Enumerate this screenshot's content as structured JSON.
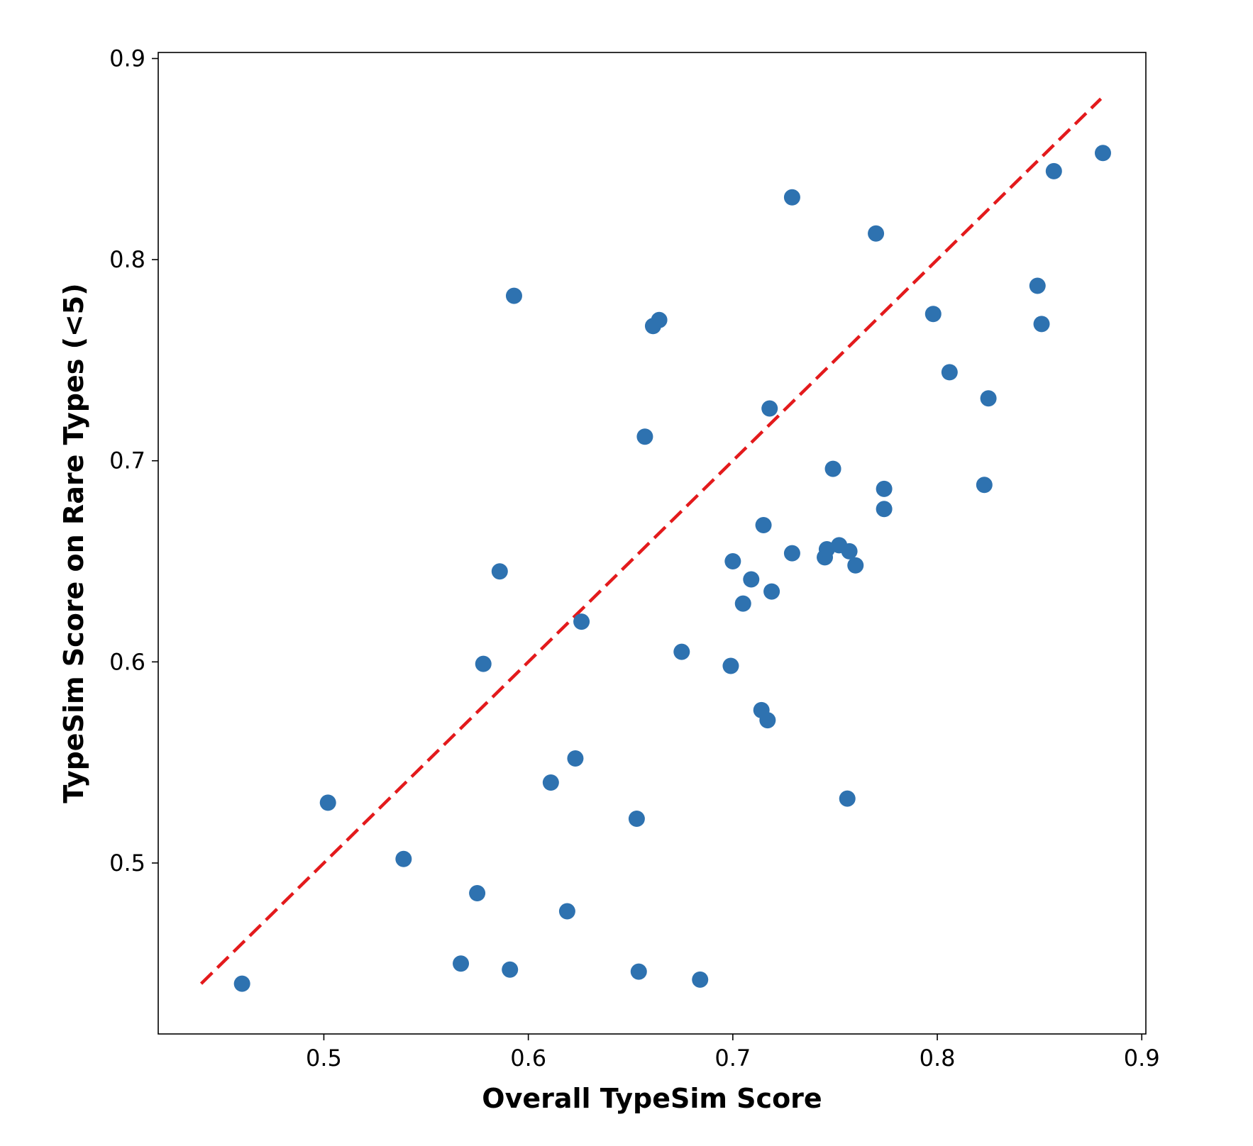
{
  "chart_data": {
    "type": "scatter",
    "title": "",
    "xlabel": "Overall TypeSim Score",
    "ylabel": "TypeSim Score on Rare Types (<5)",
    "xlim": [
      0.419,
      0.902
    ],
    "ylim": [
      0.415,
      0.903
    ],
    "xticks": [
      0.5,
      0.6,
      0.7,
      0.8,
      0.9
    ],
    "yticks": [
      0.5,
      0.6,
      0.7,
      0.8,
      0.9
    ],
    "xtick_labels": [
      "0.5",
      "0.6",
      "0.7",
      "0.8",
      "0.9"
    ],
    "ytick_labels": [
      "0.5",
      "0.6",
      "0.7",
      "0.8",
      "0.9"
    ],
    "grid": false,
    "point_color": "#2e72b0",
    "reference_line": {
      "style": "dashed",
      "color": "#e31a1c",
      "x": [
        0.44,
        0.88
      ],
      "y": [
        0.44,
        0.88
      ]
    },
    "points": [
      {
        "x": 0.46,
        "y": 0.44
      },
      {
        "x": 0.502,
        "y": 0.53
      },
      {
        "x": 0.539,
        "y": 0.502
      },
      {
        "x": 0.567,
        "y": 0.45
      },
      {
        "x": 0.575,
        "y": 0.485
      },
      {
        "x": 0.578,
        "y": 0.599
      },
      {
        "x": 0.586,
        "y": 0.645
      },
      {
        "x": 0.591,
        "y": 0.447
      },
      {
        "x": 0.593,
        "y": 0.782
      },
      {
        "x": 0.611,
        "y": 0.54
      },
      {
        "x": 0.619,
        "y": 0.476
      },
      {
        "x": 0.623,
        "y": 0.552
      },
      {
        "x": 0.626,
        "y": 0.62
      },
      {
        "x": 0.653,
        "y": 0.522
      },
      {
        "x": 0.654,
        "y": 0.446
      },
      {
        "x": 0.657,
        "y": 0.712
      },
      {
        "x": 0.661,
        "y": 0.767
      },
      {
        "x": 0.664,
        "y": 0.77
      },
      {
        "x": 0.675,
        "y": 0.605
      },
      {
        "x": 0.684,
        "y": 0.442
      },
      {
        "x": 0.699,
        "y": 0.598
      },
      {
        "x": 0.7,
        "y": 0.65
      },
      {
        "x": 0.705,
        "y": 0.629
      },
      {
        "x": 0.709,
        "y": 0.641
      },
      {
        "x": 0.714,
        "y": 0.576
      },
      {
        "x": 0.715,
        "y": 0.668
      },
      {
        "x": 0.717,
        "y": 0.571
      },
      {
        "x": 0.718,
        "y": 0.726
      },
      {
        "x": 0.719,
        "y": 0.635
      },
      {
        "x": 0.729,
        "y": 0.654
      },
      {
        "x": 0.729,
        "y": 0.831
      },
      {
        "x": 0.745,
        "y": 0.652
      },
      {
        "x": 0.746,
        "y": 0.656
      },
      {
        "x": 0.749,
        "y": 0.696
      },
      {
        "x": 0.752,
        "y": 0.658
      },
      {
        "x": 0.756,
        "y": 0.532
      },
      {
        "x": 0.757,
        "y": 0.655
      },
      {
        "x": 0.76,
        "y": 0.648
      },
      {
        "x": 0.77,
        "y": 0.813
      },
      {
        "x": 0.774,
        "y": 0.676
      },
      {
        "x": 0.774,
        "y": 0.686
      },
      {
        "x": 0.798,
        "y": 0.773
      },
      {
        "x": 0.806,
        "y": 0.744
      },
      {
        "x": 0.823,
        "y": 0.688
      },
      {
        "x": 0.825,
        "y": 0.731
      },
      {
        "x": 0.849,
        "y": 0.787
      },
      {
        "x": 0.851,
        "y": 0.768
      },
      {
        "x": 0.857,
        "y": 0.844
      },
      {
        "x": 0.881,
        "y": 0.853
      }
    ]
  }
}
